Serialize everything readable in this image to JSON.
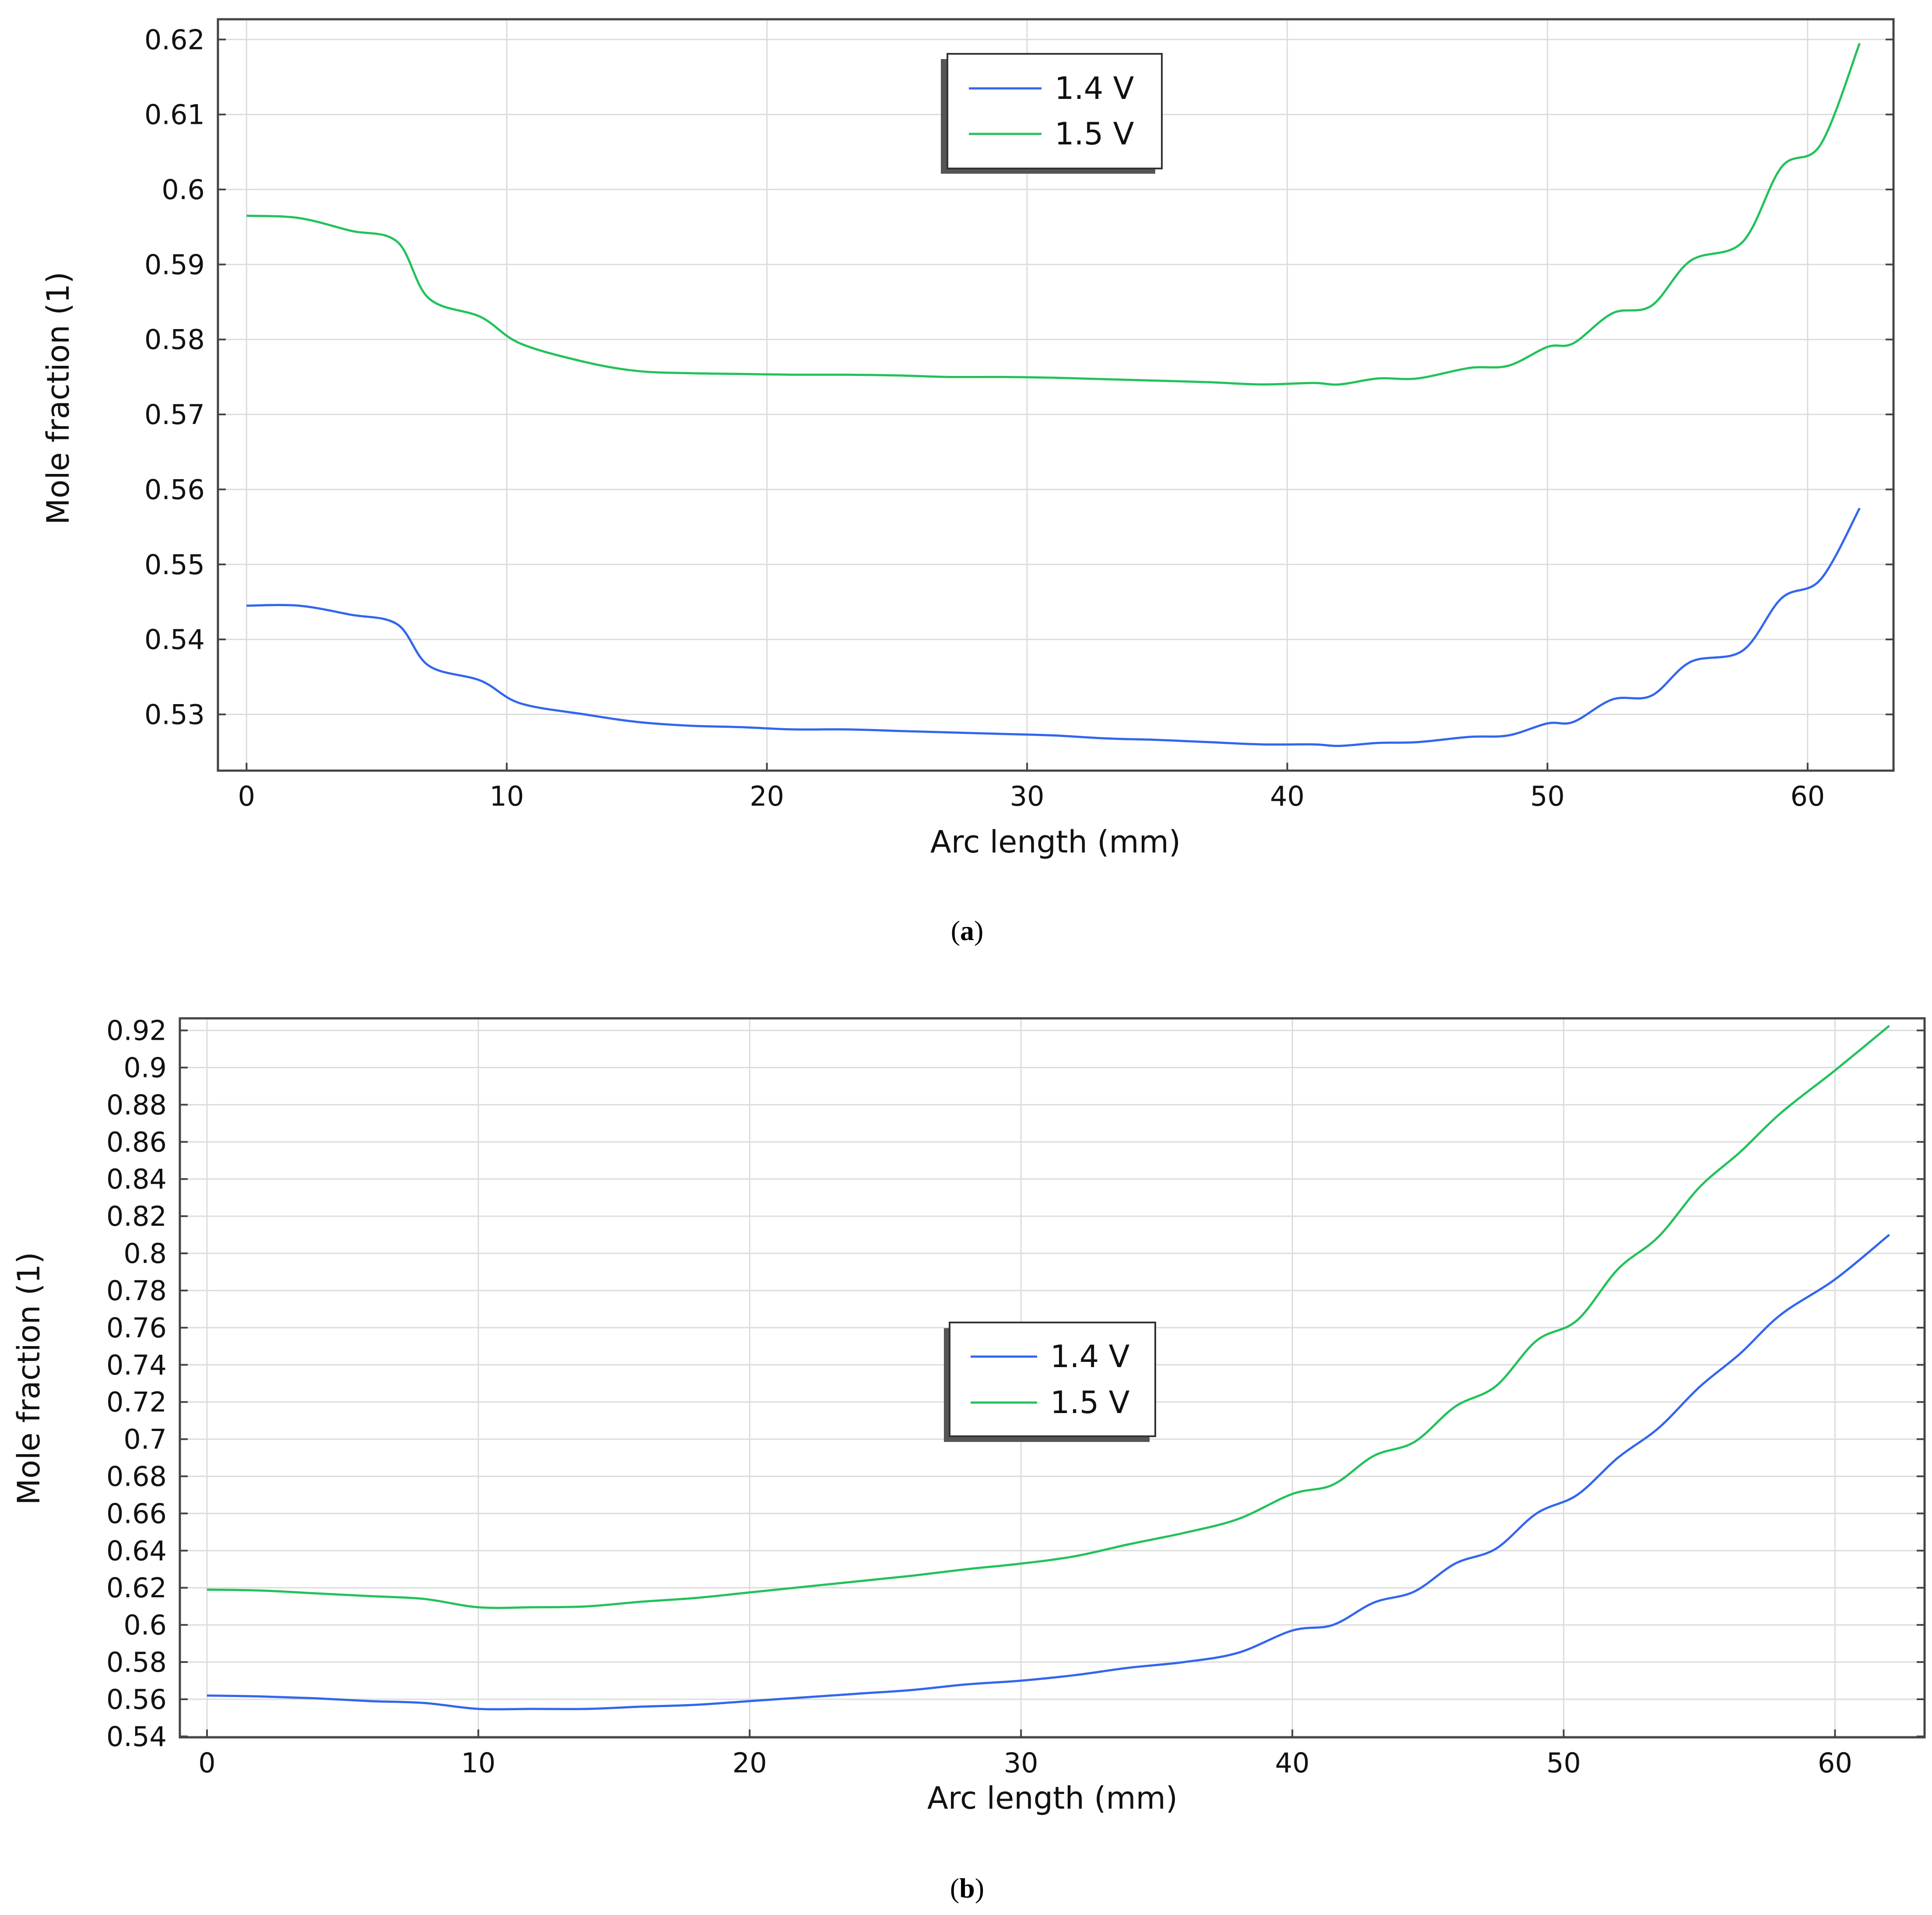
{
  "chart_data": [
    {
      "type": "line",
      "panel_label": "(a)",
      "panel_letter": "a",
      "xlabel": "Arc length (mm)",
      "ylabel": "Mole fraction (1)",
      "xlim": [
        -1.1,
        63.3
      ],
      "ylim": [
        0.5225,
        0.6227
      ],
      "x_ticks": [
        0,
        10,
        20,
        30,
        40,
        50,
        60
      ],
      "y_ticks": [
        0.53,
        0.54,
        0.55,
        0.56,
        0.57,
        0.58,
        0.59,
        0.6,
        0.61,
        0.62
      ],
      "y_tick_labels": [
        "0.53",
        "0.54",
        "0.55",
        "0.56",
        "0.57",
        "0.58",
        "0.59",
        "0.6",
        "0.61",
        "0.62"
      ],
      "grid": true,
      "legend_position": "top-center",
      "series": [
        {
          "name": "1.4 V",
          "color": "#3366ee",
          "x": [
            0,
            2,
            4,
            5.8,
            7,
            9,
            10.5,
            13,
            15,
            17,
            19,
            21,
            23,
            25,
            27,
            29,
            31,
            33,
            35,
            37,
            39,
            41,
            42,
            43.5,
            45,
            47,
            48.5,
            50,
            51,
            52.5,
            54,
            55.5,
            57.5,
            59,
            60.5,
            62
          ],
          "y": [
            0.5445,
            0.5445,
            0.5433,
            0.542,
            0.5365,
            0.5345,
            0.5315,
            0.53,
            0.529,
            0.5285,
            0.5283,
            0.528,
            0.528,
            0.5278,
            0.5276,
            0.5274,
            0.5272,
            0.5268,
            0.5266,
            0.5263,
            0.526,
            0.526,
            0.5258,
            0.5262,
            0.5263,
            0.527,
            0.5272,
            0.5288,
            0.529,
            0.532,
            0.5325,
            0.537,
            0.5385,
            0.5455,
            0.548,
            0.5575
          ]
        },
        {
          "name": "1.5 V",
          "color": "#22c25a",
          "x": [
            0,
            2,
            4,
            5.8,
            7,
            9,
            10.5,
            13,
            15,
            17,
            19,
            21,
            23,
            25,
            27,
            29,
            31,
            33,
            35,
            37,
            39,
            41,
            42,
            43.5,
            45,
            47,
            48.5,
            50,
            51,
            52.5,
            54,
            55.5,
            57.5,
            59,
            60.5,
            62
          ],
          "y": [
            0.5965,
            0.5962,
            0.5945,
            0.593,
            0.5855,
            0.583,
            0.5795,
            0.577,
            0.5758,
            0.5755,
            0.5754,
            0.5753,
            0.5753,
            0.5752,
            0.575,
            0.575,
            0.5749,
            0.5747,
            0.5745,
            0.5743,
            0.574,
            0.5742,
            0.574,
            0.5748,
            0.5748,
            0.5762,
            0.5765,
            0.579,
            0.5795,
            0.5835,
            0.5845,
            0.5905,
            0.593,
            0.603,
            0.606,
            0.6195
          ]
        }
      ]
    },
    {
      "type": "line",
      "panel_label": "(b)",
      "panel_letter": "b",
      "xlabel": "Arc length (mm)",
      "ylabel": "Mole fraction (1)",
      "xlim": [
        -1.0,
        63.3
      ],
      "ylim": [
        0.5395,
        0.9265
      ],
      "x_ticks": [
        0,
        10,
        20,
        30,
        40,
        50,
        60
      ],
      "y_ticks": [
        0.54,
        0.56,
        0.58,
        0.6,
        0.62,
        0.64,
        0.66,
        0.68,
        0.7,
        0.72,
        0.74,
        0.76,
        0.78,
        0.8,
        0.82,
        0.84,
        0.86,
        0.88,
        0.9,
        0.92
      ],
      "y_tick_labels": [
        "0.54",
        "0.56",
        "0.58",
        "0.6",
        "0.62",
        "0.64",
        "0.66",
        "0.68",
        "0.7",
        "0.72",
        "0.74",
        "0.76",
        "0.78",
        "0.8",
        "0.82",
        "0.84",
        "0.86",
        "0.88",
        "0.9",
        "0.92"
      ],
      "grid": true,
      "legend_position": "center",
      "series": [
        {
          "name": "1.4 V",
          "color": "#3366ee",
          "x": [
            0,
            2,
            4,
            6,
            8,
            10,
            12,
            14,
            16,
            18,
            20,
            22,
            24,
            26,
            28,
            30,
            32,
            34,
            36,
            38,
            40,
            41.5,
            43,
            44.5,
            46,
            47.5,
            49,
            50.5,
            52,
            53.5,
            55,
            56.5,
            58,
            60,
            62
          ],
          "y": [
            0.562,
            0.5615,
            0.5605,
            0.559,
            0.558,
            0.5548,
            0.5548,
            0.5548,
            0.556,
            0.557,
            0.559,
            0.561,
            0.563,
            0.565,
            0.568,
            0.57,
            0.573,
            0.577,
            0.58,
            0.585,
            0.597,
            0.6,
            0.612,
            0.618,
            0.633,
            0.641,
            0.66,
            0.67,
            0.69,
            0.706,
            0.728,
            0.746,
            0.767,
            0.786,
            0.81
          ]
        },
        {
          "name": "1.5 V",
          "color": "#22c25a",
          "x": [
            0,
            2,
            4,
            6,
            8,
            10,
            12,
            14,
            16,
            18,
            20,
            22,
            24,
            26,
            28,
            30,
            32,
            34,
            36,
            38,
            40,
            41.5,
            43,
            44.5,
            46,
            47.5,
            49,
            50.5,
            52,
            53.5,
            55,
            56.5,
            58,
            60,
            62
          ],
          "y": [
            0.619,
            0.6185,
            0.617,
            0.6155,
            0.614,
            0.6095,
            0.6095,
            0.61,
            0.6125,
            0.6145,
            0.6175,
            0.6205,
            0.6235,
            0.6265,
            0.63,
            0.633,
            0.637,
            0.6435,
            0.6495,
            0.657,
            0.6705,
            0.6755,
            0.691,
            0.6985,
            0.7175,
            0.7285,
            0.753,
            0.764,
            0.7915,
            0.809,
            0.8355,
            0.8545,
            0.8755,
            0.8985,
            0.9225
          ]
        }
      ]
    }
  ]
}
